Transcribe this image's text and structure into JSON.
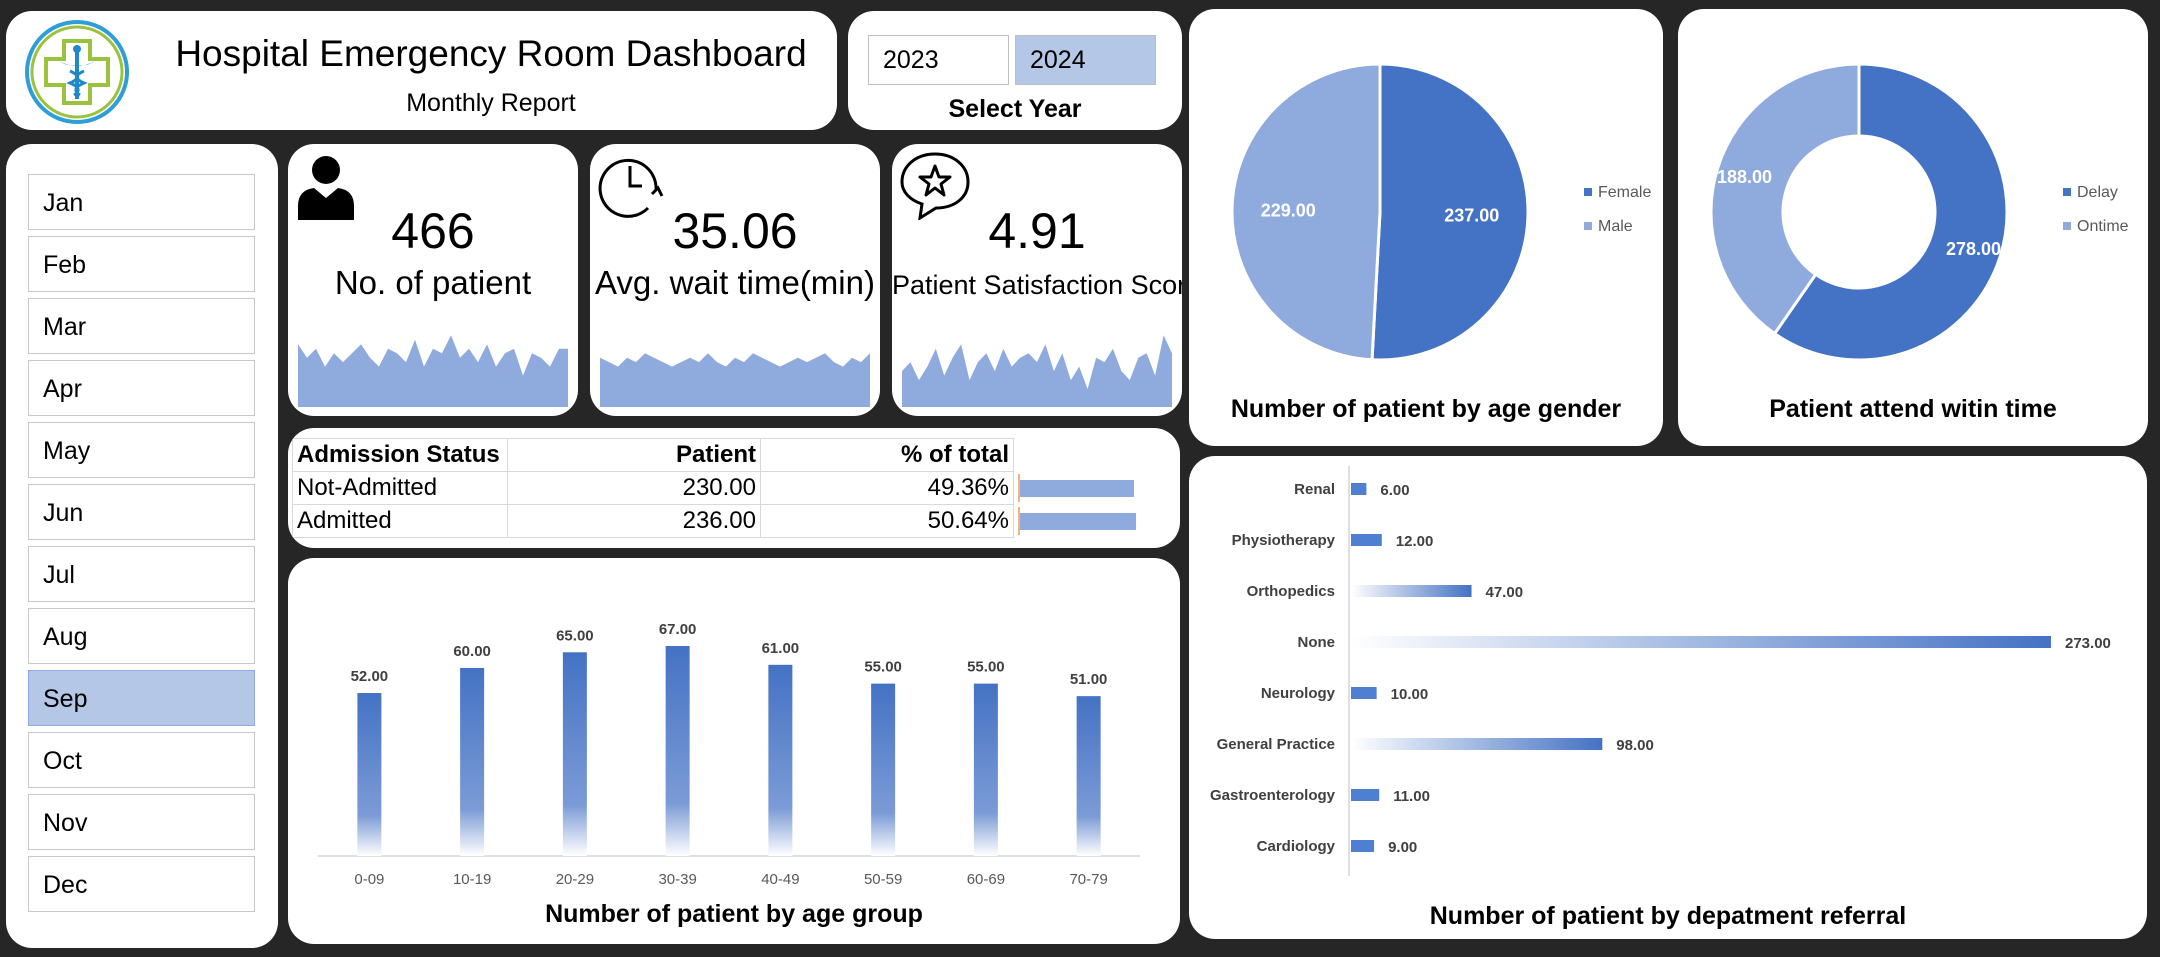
{
  "header": {
    "title": "Hospital Emergency Room Dashboard",
    "subtitle": "Monthly Report"
  },
  "year_selector": {
    "options": [
      "2023",
      "2024"
    ],
    "selected": "2024",
    "caption": "Select Year"
  },
  "months": {
    "items": [
      "Jan",
      "Feb",
      "Mar",
      "Apr",
      "May",
      "Jun",
      "Jul",
      "Aug",
      "Sep",
      "Oct",
      "Nov",
      "Dec"
    ],
    "selected": "Sep"
  },
  "kpis": {
    "patients": {
      "value": "466",
      "label": "No. of patient",
      "icon": "person-icon"
    },
    "wait_time": {
      "value": "35.06",
      "label": "Avg. wait time(min)",
      "icon": "clock-icon"
    },
    "satisfaction": {
      "value": "4.91",
      "label": "Patient Satisfaction Score",
      "icon": "star-bubble-icon"
    }
  },
  "admission_table": {
    "headers": [
      "Admission Status",
      "Patient",
      "% of total"
    ],
    "rows": [
      {
        "status": "Not-Admitted",
        "patient": "230.00",
        "pct": "49.36%",
        "fraction": 0.4936
      },
      {
        "status": "Admitted",
        "patient": "236.00",
        "pct": "50.64%",
        "fraction": 0.5064
      }
    ]
  },
  "colors": {
    "accent": "#4472c4",
    "light": "#8faadc",
    "selected": "#b4c7e7",
    "background": "#262626"
  },
  "chart_data": [
    {
      "id": "sparkline-patients",
      "type": "area",
      "series": [
        {
          "values": [
            14,
            11,
            13,
            9,
            12,
            10,
            12,
            14,
            11,
            9,
            13,
            12,
            10,
            15,
            9,
            13,
            12,
            16,
            11,
            13,
            10,
            14,
            9,
            12,
            13,
            7,
            12,
            11,
            9,
            13,
            13
          ]
        }
      ]
    },
    {
      "id": "sparkline-wait",
      "type": "area",
      "series": [
        {
          "values": [
            11,
            10,
            9,
            11,
            10,
            12,
            11,
            10,
            9,
            10,
            11,
            10,
            12,
            10,
            9,
            11,
            10,
            12,
            11,
            10,
            9,
            10,
            11,
            10,
            11,
            12,
            10,
            9,
            11,
            10,
            12
          ]
        }
      ]
    },
    {
      "id": "sparkline-satisfaction",
      "type": "area",
      "series": [
        {
          "values": [
            8,
            10,
            6,
            9,
            13,
            7,
            11,
            14,
            6,
            10,
            12,
            8,
            13,
            9,
            11,
            12,
            10,
            14,
            8,
            12,
            6,
            9,
            4,
            11,
            10,
            13,
            8,
            6,
            11,
            12,
            7,
            16,
            12
          ]
        }
      ]
    },
    {
      "id": "age-group",
      "type": "bar",
      "title": "Number of patient by age group",
      "categories": [
        "0-09",
        "10-19",
        "20-29",
        "30-39",
        "40-49",
        "50-59",
        "60-69",
        "70-79"
      ],
      "values": [
        52,
        60,
        65,
        67,
        61,
        55,
        55,
        51
      ],
      "labels": [
        "52.00",
        "60.00",
        "65.00",
        "67.00",
        "61.00",
        "55.00",
        "55.00",
        "51.00"
      ],
      "ylim": [
        0,
        80
      ]
    },
    {
      "id": "gender",
      "type": "pie",
      "title": "Number of patient by age gender",
      "categories": [
        "Female",
        "Male"
      ],
      "values": [
        237,
        229
      ],
      "labels": [
        "237.00",
        "229.00"
      ],
      "colors": [
        "#4472c4",
        "#8faadc"
      ],
      "legend": "right"
    },
    {
      "id": "attend",
      "type": "pie",
      "title": "Patient attend witin time",
      "categories": [
        "Delay",
        "Ontime"
      ],
      "values": [
        278,
        188
      ],
      "labels": [
        "278.00",
        "188.00"
      ],
      "colors": [
        "#4472c4",
        "#8faadc"
      ],
      "legend": "right"
    },
    {
      "id": "department",
      "type": "bar",
      "title": "Number of patient by depatment referral",
      "categories": [
        "Renal",
        "Physiotherapy",
        "Orthopedics",
        "None",
        "Neurology",
        "General Practice",
        "Gastroenterology",
        "Cardiology"
      ],
      "values": [
        6,
        12,
        47,
        273,
        10,
        98,
        11,
        9
      ],
      "labels": [
        "6.00",
        "12.00",
        "47.00",
        "273.00",
        "10.00",
        "98.00",
        "11.00",
        "9.00"
      ],
      "orientation": "horizontal"
    }
  ]
}
